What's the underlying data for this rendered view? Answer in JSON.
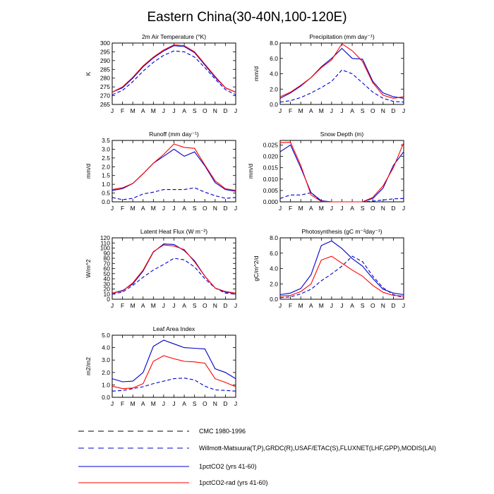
{
  "title": "Eastern China(30-40N,100-120E)",
  "colors": {
    "cmc": "#000000",
    "obs": "#0000cc",
    "co2": "#0000cc",
    "co2rad": "#ff0000"
  },
  "legend": [
    {
      "key": "cmc",
      "label": "CMC 1980-1996",
      "dash": "8,6"
    },
    {
      "key": "obs",
      "label": "Willmott-Matsuura(T,P),GRDC(R),USAF/ETAC(S),FLUXNET(LHF,GPP),MODIS(LAI)",
      "dash": "8,6"
    },
    {
      "key": "co2",
      "label": "1pctCO2 (yrs 41-60)",
      "dash": ""
    },
    {
      "key": "co2rad",
      "label": "1pctCO2-rad (yrs 41-60)",
      "dash": ""
    }
  ],
  "chart_data": [
    {
      "type": "line",
      "title": "2m Air Temperature (°K)",
      "ylabel": "K",
      "categories": [
        "J",
        "F",
        "M",
        "A",
        "M",
        "J",
        "J",
        "A",
        "S",
        "O",
        "N",
        "D",
        "J"
      ],
      "ylim": [
        265,
        300
      ],
      "yticks": [
        265,
        270,
        275,
        280,
        285,
        290,
        295,
        300
      ],
      "ytick_labels": [
        "265",
        "270",
        "275",
        "280",
        "285",
        "290",
        "295",
        "300"
      ],
      "series": [
        {
          "key": "obs",
          "values": [
            270.5,
            273.0,
            278.0,
            284.0,
            289.0,
            293.0,
            295.5,
            295.0,
            292.0,
            286.0,
            279.5,
            273.5,
            270.5
          ]
        },
        {
          "key": "co2",
          "values": [
            272.0,
            274.5,
            280.0,
            286.5,
            291.5,
            295.5,
            298.5,
            298.0,
            294.5,
            287.5,
            280.5,
            274.5,
            272.0
          ]
        },
        {
          "key": "co2rad",
          "values": [
            272.0,
            275.0,
            280.5,
            287.0,
            292.0,
            296.0,
            299.0,
            298.5,
            295.0,
            288.0,
            281.0,
            274.5,
            272.0
          ]
        }
      ]
    },
    {
      "type": "line",
      "title": "Precipitation (mm day⁻¹)",
      "ylabel": "mm/d",
      "categories": [
        "J",
        "F",
        "M",
        "A",
        "M",
        "J",
        "J",
        "A",
        "S",
        "O",
        "N",
        "D",
        "J"
      ],
      "ylim": [
        0,
        8
      ],
      "yticks": [
        0,
        2,
        4,
        6,
        8
      ],
      "ytick_labels": [
        "0.0",
        "2.0",
        "4.0",
        "6.0",
        "8.0"
      ],
      "series": [
        {
          "key": "obs",
          "values": [
            0.3,
            0.5,
            0.9,
            1.5,
            2.2,
            3.0,
            4.5,
            4.0,
            2.8,
            1.6,
            0.8,
            0.4,
            0.3
          ]
        },
        {
          "key": "co2",
          "values": [
            0.8,
            1.5,
            2.4,
            3.5,
            4.9,
            6.0,
            7.3,
            6.0,
            5.9,
            3.0,
            1.5,
            1.0,
            0.8
          ]
        },
        {
          "key": "co2rad",
          "values": [
            1.0,
            1.6,
            2.5,
            3.5,
            4.8,
            5.8,
            7.9,
            7.0,
            5.6,
            2.8,
            1.2,
            0.8,
            1.0
          ]
        }
      ]
    },
    {
      "type": "line",
      "title": "Runoff (mm day⁻¹)",
      "ylabel": "mm/d",
      "categories": [
        "J",
        "F",
        "M",
        "A",
        "M",
        "J",
        "J",
        "A",
        "S",
        "O",
        "N",
        "D",
        "J"
      ],
      "ylim": [
        0,
        3.5
      ],
      "yticks": [
        0,
        0.5,
        1,
        1.5,
        2,
        2.5,
        3,
        3.5
      ],
      "ytick_labels": [
        "0.0",
        "0.5",
        "1.0",
        "1.5",
        "2.0",
        "2.5",
        "3.0",
        "3.5"
      ],
      "series": [
        {
          "key": "obs",
          "values": [
            0.25,
            0.12,
            0.2,
            0.45,
            0.55,
            0.7,
            0.7,
            0.7,
            0.8,
            0.55,
            0.35,
            0.2,
            0.25
          ]
        },
        {
          "key": "co2",
          "values": [
            0.65,
            0.75,
            1.05,
            1.6,
            2.2,
            2.6,
            3.0,
            2.6,
            2.85,
            2.05,
            1.1,
            0.7,
            0.6
          ]
        },
        {
          "key": "co2rad",
          "values": [
            0.7,
            0.8,
            1.05,
            1.6,
            2.2,
            2.7,
            3.3,
            3.1,
            3.05,
            2.1,
            1.2,
            0.75,
            0.65
          ]
        }
      ]
    },
    {
      "type": "line",
      "title": "Snow Depth (m)",
      "ylabel": "mm/d",
      "categories": [
        "J",
        "F",
        "M",
        "A",
        "M",
        "J",
        "J",
        "A",
        "S",
        "O",
        "N",
        "D",
        "J"
      ],
      "ylim": [
        0,
        0.027
      ],
      "yticks": [
        0,
        0.005,
        0.01,
        0.015,
        0.02,
        0.025
      ],
      "ytick_labels": [
        "0.000",
        "0.005",
        "0.010",
        "0.015",
        "0.020",
        "0.025"
      ],
      "series": [
        {
          "key": "obs",
          "values": [
            0.0015,
            0.003,
            0.003,
            0.004,
            0.0002,
            0.0,
            0.0,
            0.0,
            0.0,
            0.0003,
            0.0008,
            0.0013,
            0.0015
          ]
        },
        {
          "key": "co2",
          "values": [
            0.022,
            0.025,
            0.015,
            0.004,
            0.0005,
            0.0,
            0.0,
            0.0,
            0.0,
            0.0015,
            0.006,
            0.016,
            0.022
          ]
        },
        {
          "key": "co2rad",
          "values": [
            0.026,
            0.0262,
            0.016,
            0.003,
            0.0002,
            0.0,
            0.0,
            0.0,
            0.0,
            0.002,
            0.007,
            0.015,
            0.026
          ]
        }
      ]
    },
    {
      "type": "line",
      "title": "Latent Heat Flux (W m⁻²)",
      "ylabel": "W/m^2",
      "categories": [
        "J",
        "F",
        "M",
        "A",
        "M",
        "J",
        "J",
        "A",
        "S",
        "O",
        "N",
        "D",
        "J"
      ],
      "ylim": [
        0,
        120
      ],
      "yticks": [
        0,
        10,
        20,
        30,
        40,
        50,
        60,
        70,
        80,
        90,
        100,
        110,
        120
      ],
      "ytick_labels": [
        "0",
        "10",
        "20",
        "30",
        "40",
        "50",
        "60",
        "70",
        "80",
        "90",
        "100",
        "110",
        "120"
      ],
      "series": [
        {
          "key": "obs",
          "values": [
            10,
            14,
            27,
            43,
            57,
            68,
            80,
            77,
            63,
            40,
            22,
            12,
            10
          ]
        },
        {
          "key": "co2",
          "values": [
            12,
            17,
            30,
            55,
            92,
            108,
            107,
            95,
            75,
            45,
            22,
            14,
            12
          ]
        },
        {
          "key": "co2rad",
          "values": [
            12,
            16,
            32,
            57,
            93,
            106,
            104,
            97,
            73,
            45,
            22,
            15,
            12
          ]
        }
      ]
    },
    {
      "type": "line",
      "title": "Photosynthesis (gC m⁻²day⁻¹)",
      "ylabel": "gC/m^2/d",
      "categories": [
        "J",
        "F",
        "M",
        "A",
        "M",
        "J",
        "J",
        "A",
        "S",
        "O",
        "N",
        "D",
        "J"
      ],
      "ylim": [
        0,
        8
      ],
      "yticks": [
        0,
        2,
        4,
        6,
        8
      ],
      "ytick_labels": [
        "0.0",
        "2.0",
        "4.0",
        "6.0",
        "8.0"
      ],
      "series": [
        {
          "key": "obs",
          "values": [
            0.2,
            0.3,
            0.7,
            1.3,
            2.4,
            3.3,
            4.3,
            5.6,
            4.9,
            3.0,
            1.5,
            0.6,
            0.2
          ]
        },
        {
          "key": "co2",
          "values": [
            0.6,
            0.8,
            1.4,
            3.2,
            7.0,
            7.6,
            6.6,
            5.3,
            4.3,
            2.7,
            1.3,
            0.8,
            0.6
          ]
        },
        {
          "key": "co2rad",
          "values": [
            0.4,
            0.5,
            1.0,
            2.0,
            5.1,
            5.6,
            4.7,
            3.8,
            3.0,
            1.8,
            0.9,
            0.5,
            0.4
          ]
        }
      ]
    },
    {
      "type": "line",
      "title": "Leaf Area Index",
      "ylabel": "m2/m2",
      "categories": [
        "J",
        "F",
        "M",
        "A",
        "M",
        "J",
        "J",
        "A",
        "S",
        "O",
        "N",
        "D",
        "J"
      ],
      "ylim": [
        0,
        5
      ],
      "yticks": [
        0,
        1,
        2,
        3,
        4,
        5
      ],
      "ytick_labels": [
        "0.0",
        "1.0",
        "2.0",
        "3.0",
        "4.0",
        "5.0"
      ],
      "series": [
        {
          "key": "obs",
          "values": [
            0.5,
            0.55,
            0.7,
            0.85,
            1.1,
            1.3,
            1.5,
            1.55,
            1.4,
            0.9,
            0.6,
            0.55,
            0.5
          ]
        },
        {
          "key": "co2",
          "values": [
            1.5,
            1.25,
            1.3,
            2.0,
            4.1,
            4.6,
            4.3,
            4.0,
            3.95,
            3.9,
            2.3,
            2.0,
            1.5
          ]
        },
        {
          "key": "co2rad",
          "values": [
            0.9,
            0.7,
            0.75,
            1.1,
            2.9,
            3.35,
            3.1,
            2.9,
            2.85,
            2.75,
            1.5,
            1.2,
            0.85
          ]
        }
      ]
    }
  ]
}
